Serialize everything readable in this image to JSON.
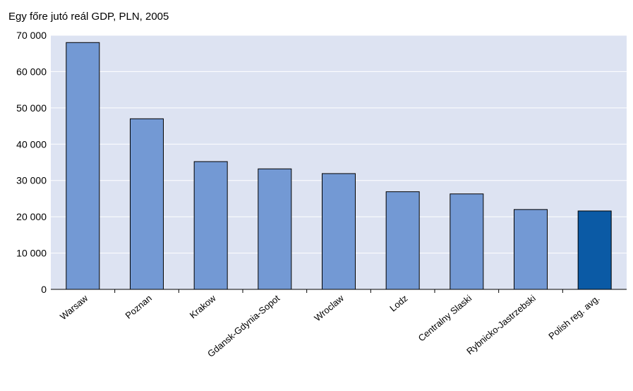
{
  "chart_data": {
    "type": "bar",
    "title": "Egy főre jutó reál GDP, PLN, 2005",
    "xlabel": "",
    "ylabel": "",
    "categories": [
      "Warsaw",
      "Poznan",
      "Krakow",
      "Gdansk-Gdynia-Sopot",
      "Wroclaw",
      "Lodz",
      "Centralny Slaski",
      "Rybnicko-Jastrzebski",
      "Polish reg. avg."
    ],
    "values": [
      68000,
      47000,
      35200,
      33200,
      31900,
      26900,
      26300,
      22000,
      21600
    ],
    "highlight": [
      false,
      false,
      false,
      false,
      false,
      false,
      false,
      false,
      true
    ],
    "ylim": [
      0,
      70000
    ],
    "yticks": [
      0,
      10000,
      20000,
      30000,
      40000,
      50000,
      60000,
      70000
    ],
    "ytick_labels": [
      "0",
      "10 000",
      "20 000",
      "30 000",
      "40 000",
      "50 000",
      "60 000",
      "70 000"
    ],
    "grid": true,
    "legend": "none",
    "colors": {
      "bar": "#7399d4",
      "bar_highlight": "#0b5aa5",
      "plot_background": "#dde3f2",
      "gridline": "#ffffff",
      "bar_edge": "#000000"
    }
  }
}
